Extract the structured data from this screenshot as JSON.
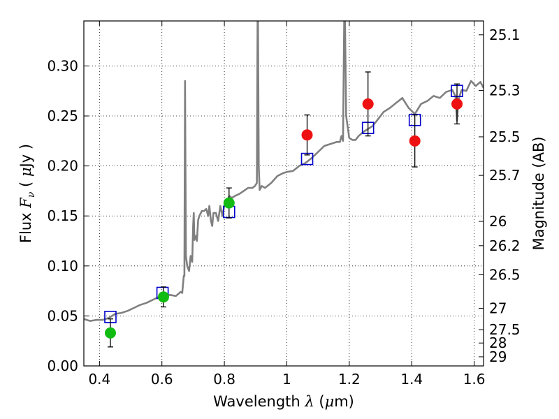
{
  "chart_data": {
    "type": "scatter",
    "xlabel": {
      "prefix": "Wavelength ",
      "sym": "λ",
      "unit": " (",
      "mu": "μ",
      "suffix": "m)"
    },
    "ylabel": {
      "prefix": "Flux ",
      "sym": "F",
      "sub": "ν",
      "open": " ( ",
      "mu": "μ",
      "suffix": "Jy )"
    },
    "y2label": "Magnitude (AB)",
    "xlim": [
      0.35,
      1.63
    ],
    "ylim": [
      0.0,
      0.345
    ],
    "x_ticks": [
      {
        "value": 0.4,
        "label": "0.4"
      },
      {
        "value": 0.6,
        "label": "0.6"
      },
      {
        "value": 0.8,
        "label": "0.8"
      },
      {
        "value": 1.0,
        "label": "1"
      },
      {
        "value": 1.2,
        "label": "1.2"
      },
      {
        "value": 1.4,
        "label": "1.4"
      },
      {
        "value": 1.6,
        "label": "1.6"
      }
    ],
    "y_ticks": [
      {
        "value": 0.0,
        "label": "0.00"
      },
      {
        "value": 0.05,
        "label": "0.05"
      },
      {
        "value": 0.1,
        "label": "0.10"
      },
      {
        "value": 0.15,
        "label": "0.15"
      },
      {
        "value": 0.2,
        "label": "0.20"
      },
      {
        "value": 0.25,
        "label": "0.25"
      },
      {
        "value": 0.3,
        "label": "0.30"
      }
    ],
    "y2_ticks": [
      {
        "value": 25.1,
        "label": "25.1"
      },
      {
        "value": 25.3,
        "label": "25.3"
      },
      {
        "value": 25.5,
        "label": "25.5"
      },
      {
        "value": 25.7,
        "label": "25.7"
      },
      {
        "value": 26.0,
        "label": "26"
      },
      {
        "value": 26.2,
        "label": "26.2"
      },
      {
        "value": 26.5,
        "label": "26.5"
      },
      {
        "value": 27.0,
        "label": "27"
      },
      {
        "value": 27.5,
        "label": "27.5"
      },
      {
        "value": 28.0,
        "label": "28"
      },
      {
        "value": 29.0,
        "label": "29"
      }
    ],
    "grid": true,
    "colors": {
      "spectrum": "#808080",
      "model_boxes": "#0000cc",
      "detections_optical": "#11bb11",
      "detections_nir": "#ee1111",
      "errorbars": "#000000"
    },
    "series": [
      {
        "kind": "line",
        "points": [
          [
            0.35,
            0.047
          ],
          [
            0.37,
            0.045
          ],
          [
            0.39,
            0.046
          ],
          [
            0.41,
            0.046
          ],
          [
            0.43,
            0.048
          ],
          [
            0.45,
            0.052
          ],
          [
            0.47,
            0.053
          ],
          [
            0.49,
            0.055
          ],
          [
            0.51,
            0.058
          ],
          [
            0.53,
            0.061
          ],
          [
            0.55,
            0.063
          ],
          [
            0.57,
            0.066
          ],
          [
            0.59,
            0.069
          ],
          [
            0.61,
            0.07
          ],
          [
            0.625,
            0.071
          ],
          [
            0.645,
            0.07
          ],
          [
            0.66,
            0.074
          ],
          [
            0.665,
            0.073
          ],
          [
            0.67,
            0.09
          ],
          [
            0.672,
            0.09
          ],
          [
            0.674,
            0.285
          ],
          [
            0.677,
            0.11
          ],
          [
            0.681,
            0.1
          ],
          [
            0.687,
            0.095
          ],
          [
            0.692,
            0.11
          ],
          [
            0.697,
            0.104
          ],
          [
            0.7,
            0.14
          ],
          [
            0.702,
            0.153
          ],
          [
            0.704,
            0.126
          ],
          [
            0.708,
            0.13
          ],
          [
            0.712,
            0.125
          ],
          [
            0.716,
            0.146
          ],
          [
            0.72,
            0.15
          ],
          [
            0.728,
            0.155
          ],
          [
            0.735,
            0.155
          ],
          [
            0.742,
            0.157
          ],
          [
            0.748,
            0.15
          ],
          [
            0.752,
            0.16
          ],
          [
            0.757,
            0.145
          ],
          [
            0.761,
            0.14
          ],
          [
            0.765,
            0.153
          ],
          [
            0.773,
            0.153
          ],
          [
            0.78,
            0.145
          ],
          [
            0.787,
            0.16
          ],
          [
            0.794,
            0.15
          ],
          [
            0.801,
            0.162
          ],
          [
            0.808,
            0.165
          ],
          [
            0.816,
            0.17
          ],
          [
            0.824,
            0.168
          ],
          [
            0.834,
            0.17
          ],
          [
            0.848,
            0.172
          ],
          [
            0.862,
            0.175
          ],
          [
            0.876,
            0.178
          ],
          [
            0.89,
            0.178
          ],
          [
            0.898,
            0.18
          ],
          [
            0.904,
            0.183
          ],
          [
            0.907,
            0.39
          ],
          [
            0.91,
            0.2
          ],
          [
            0.913,
            0.176
          ],
          [
            0.92,
            0.18
          ],
          [
            0.93,
            0.178
          ],
          [
            0.95,
            0.183
          ],
          [
            0.97,
            0.19
          ],
          [
            0.99,
            0.193
          ],
          [
            1.0,
            0.194
          ],
          [
            1.02,
            0.195
          ],
          [
            1.04,
            0.2
          ],
          [
            1.06,
            0.203
          ],
          [
            1.08,
            0.208
          ],
          [
            1.1,
            0.214
          ],
          [
            1.12,
            0.22
          ],
          [
            1.14,
            0.222
          ],
          [
            1.16,
            0.224
          ],
          [
            1.17,
            0.224
          ],
          [
            1.175,
            0.23
          ],
          [
            1.18,
            0.225
          ],
          [
            1.185,
            0.38
          ],
          [
            1.19,
            0.25
          ],
          [
            1.2,
            0.228
          ],
          [
            1.21,
            0.226
          ],
          [
            1.22,
            0.226
          ],
          [
            1.23,
            0.23
          ],
          [
            1.245,
            0.234
          ],
          [
            1.26,
            0.237
          ],
          [
            1.275,
            0.24
          ],
          [
            1.29,
            0.246
          ],
          [
            1.31,
            0.254
          ],
          [
            1.33,
            0.258
          ],
          [
            1.35,
            0.263
          ],
          [
            1.37,
            0.268
          ],
          [
            1.39,
            0.258
          ],
          [
            1.41,
            0.252
          ],
          [
            1.43,
            0.262
          ],
          [
            1.45,
            0.265
          ],
          [
            1.47,
            0.27
          ],
          [
            1.49,
            0.268
          ],
          [
            1.51,
            0.274
          ],
          [
            1.53,
            0.276
          ],
          [
            1.54,
            0.27
          ],
          [
            1.545,
            0.245
          ],
          [
            1.55,
            0.267
          ],
          [
            1.56,
            0.276
          ],
          [
            1.575,
            0.275
          ],
          [
            1.59,
            0.285
          ],
          [
            1.605,
            0.28
          ],
          [
            1.62,
            0.284
          ],
          [
            1.63,
            0.278
          ]
        ]
      },
      {
        "kind": "markers-square",
        "points": [
          [
            0.435,
            0.049
          ],
          [
            0.602,
            0.073
          ],
          [
            0.815,
            0.154
          ],
          [
            1.065,
            0.207
          ],
          [
            1.26,
            0.238
          ],
          [
            1.41,
            0.246
          ],
          [
            1.545,
            0.275
          ]
        ]
      },
      {
        "kind": "markers-circle",
        "points": [
          {
            "x": 0.435,
            "y": 0.033,
            "err": 0.014,
            "group": "optical"
          },
          {
            "x": 0.605,
            "y": 0.069,
            "err": 0.01,
            "group": "optical"
          },
          {
            "x": 0.815,
            "y": 0.163,
            "err": 0.015,
            "group": "optical"
          },
          {
            "x": 1.065,
            "y": 0.231,
            "err": 0.02,
            "group": "nir"
          },
          {
            "x": 1.26,
            "y": 0.262,
            "err": 0.032,
            "group": "nir"
          },
          {
            "x": 1.41,
            "y": 0.225,
            "err": 0.026,
            "group": "nir"
          },
          {
            "x": 1.545,
            "y": 0.262,
            "err": 0.02,
            "group": "nir"
          }
        ]
      }
    ]
  }
}
